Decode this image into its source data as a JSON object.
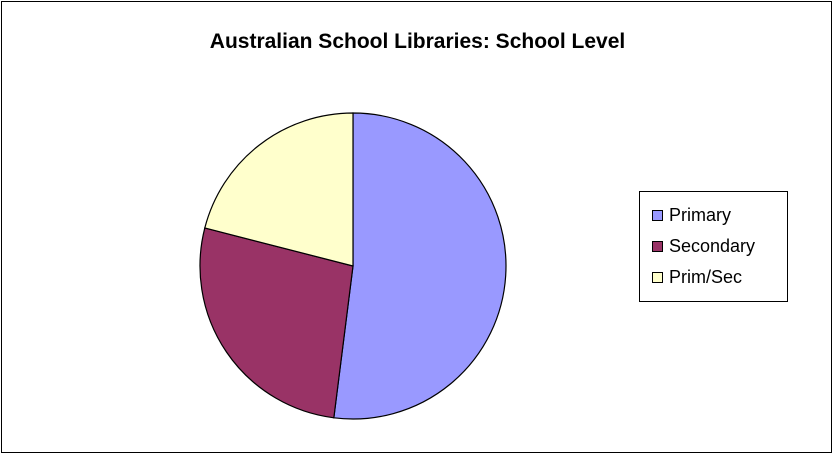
{
  "chart_data": {
    "type": "pie",
    "title": "Australian School Libraries: School Level",
    "categories": [
      "Primary",
      "Secondary",
      "Prim/Sec"
    ],
    "values": [
      52,
      27,
      21
    ],
    "colors": [
      "#9999ff",
      "#993366",
      "#ffffcc"
    ],
    "legend_position": "right"
  }
}
